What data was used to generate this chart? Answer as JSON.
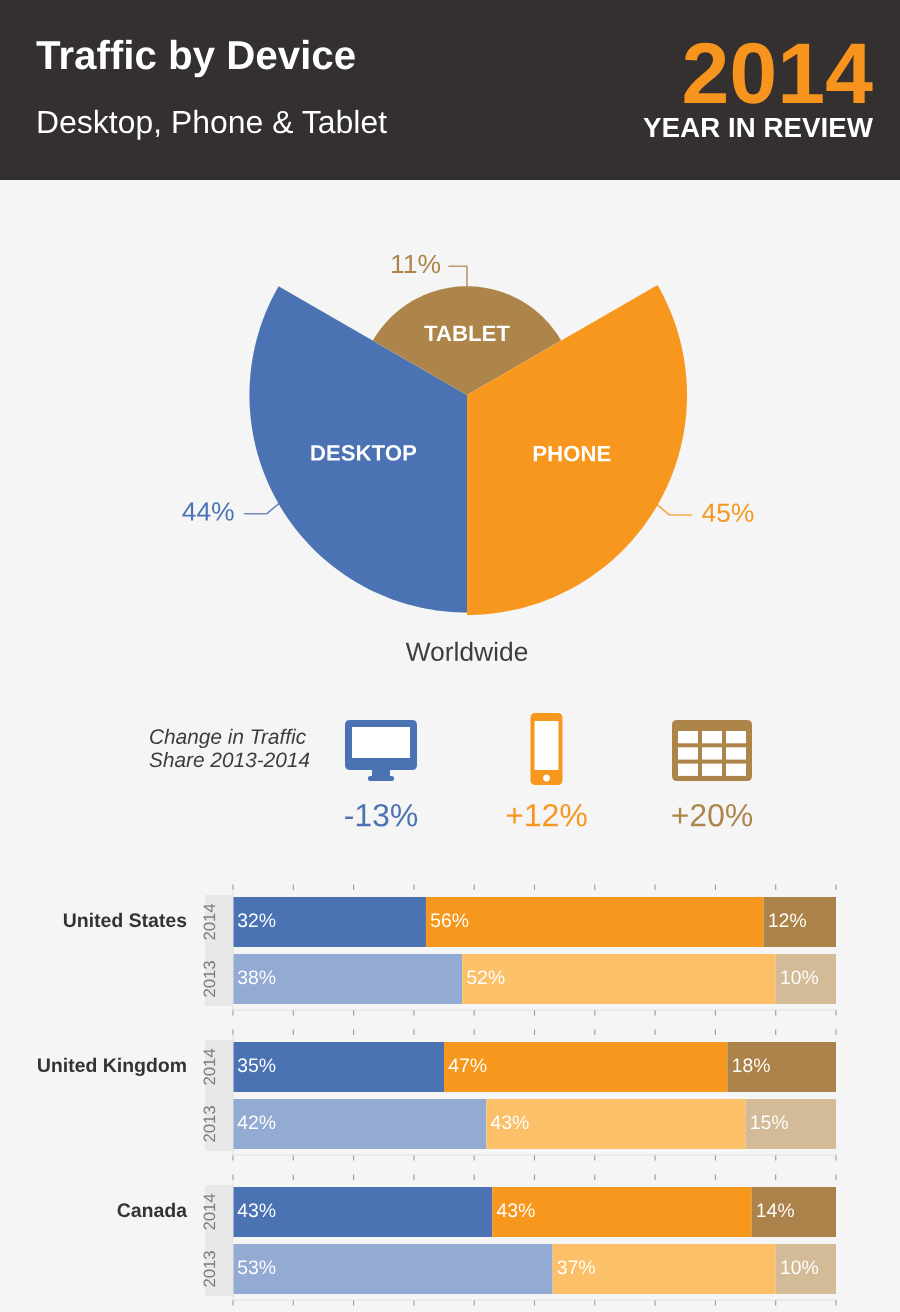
{
  "chart_data": [
    {
      "type": "other",
      "title": "Traffic by Device",
      "subtitle": "Desktop, Phone & Tablet",
      "annotations": [
        "2014",
        "YEAR IN REVIEW"
      ],
      "categories": [
        "DESKTOP",
        "TABLET",
        "PHONE"
      ],
      "values": [
        44,
        11,
        45
      ],
      "colors": [
        "#4b73b4",
        "#ad854a",
        "#f7971e"
      ],
      "value_labels": [
        "44%",
        "11%",
        "45%"
      ],
      "xlabel": "Worldwide"
    },
    {
      "type": "other",
      "title": "Change in Traffic\nShare 2013-2014",
      "annotations": [
        "-13%",
        "+12%",
        "+20%"
      ],
      "colors": [
        "#4b73b4",
        "#f7971e",
        "#ad854a"
      ]
    },
    {
      "type": "bar",
      "orientation": "horizontal",
      "stacked": true,
      "ylabel": "United States",
      "categories": [
        "2014",
        "2013"
      ],
      "series": [
        {
          "colors": [
            "#4b73b4",
            "#93aad3"
          ],
          "values": [
            32,
            38
          ],
          "value_labels": [
            "32%",
            "38%"
          ]
        },
        {
          "colors": [
            "#f7971e",
            "#fcc168"
          ],
          "values": [
            56,
            52
          ],
          "value_labels": [
            "56%",
            "52%"
          ]
        },
        {
          "colors": [
            "#ab8249",
            "#d4bb98"
          ],
          "values": [
            12,
            10
          ],
          "value_labels": [
            "12%",
            "10%"
          ]
        }
      ],
      "xlim": [
        0,
        100
      ],
      "xticks": [
        {
          "value": 0,
          "label": null
        },
        {
          "value": 10,
          "label": null
        },
        {
          "value": 20,
          "label": null
        },
        {
          "value": 30,
          "label": null
        },
        {
          "value": 40,
          "label": null
        },
        {
          "value": 50,
          "label": null
        },
        {
          "value": 60,
          "label": null
        },
        {
          "value": 70,
          "label": null
        },
        {
          "value": 80,
          "label": null
        },
        {
          "value": 90,
          "label": null
        },
        {
          "value": 100,
          "label": null
        }
      ],
      "tick_labels": "y"
    },
    {
      "type": "bar",
      "orientation": "horizontal",
      "stacked": true,
      "ylabel": "United Kingdom",
      "categories": [
        "2014",
        "2013"
      ],
      "series": [
        {
          "colors": [
            "#4b73b4",
            "#93aad3"
          ],
          "values": [
            35,
            42
          ],
          "value_labels": [
            "35%",
            "42%"
          ]
        },
        {
          "colors": [
            "#f7971e",
            "#fcc168"
          ],
          "values": [
            47,
            43
          ],
          "value_labels": [
            "47%",
            "43%"
          ]
        },
        {
          "colors": [
            "#ab8249",
            "#d4bb98"
          ],
          "values": [
            18,
            15
          ],
          "value_labels": [
            "18%",
            "15%"
          ]
        }
      ],
      "xlim": [
        0,
        100
      ],
      "xticks": [
        {
          "value": 0,
          "label": null
        },
        {
          "value": 10,
          "label": null
        },
        {
          "value": 20,
          "label": null
        },
        {
          "value": 30,
          "label": null
        },
        {
          "value": 40,
          "label": null
        },
        {
          "value": 50,
          "label": null
        },
        {
          "value": 60,
          "label": null
        },
        {
          "value": 70,
          "label": null
        },
        {
          "value": 80,
          "label": null
        },
        {
          "value": 90,
          "label": null
        },
        {
          "value": 100,
          "label": null
        }
      ],
      "tick_labels": "y"
    },
    {
      "type": "bar",
      "orientation": "horizontal",
      "stacked": true,
      "ylabel": "Canada",
      "categories": [
        "2014",
        "2013"
      ],
      "series": [
        {
          "colors": [
            "#4b73b4",
            "#93aad3"
          ],
          "values": [
            43,
            53
          ],
          "value_labels": [
            "43%",
            "53%"
          ]
        },
        {
          "colors": [
            "#f7971e",
            "#fcc168"
          ],
          "values": [
            43,
            37
          ],
          "value_labels": [
            "43%",
            "37%"
          ]
        },
        {
          "colors": [
            "#ab8249",
            "#d4bb98"
          ],
          "values": [
            14,
            10
          ],
          "value_labels": [
            "14%",
            "10%"
          ]
        }
      ],
      "xlim": [
        0,
        100
      ],
      "xticks": [
        {
          "value": 0,
          "label": null
        },
        {
          "value": 10,
          "label": null
        },
        {
          "value": 20,
          "label": null
        },
        {
          "value": 30,
          "label": null
        },
        {
          "value": 40,
          "label": null
        },
        {
          "value": 50,
          "label": null
        },
        {
          "value": 60,
          "label": null
        },
        {
          "value": 70,
          "label": null
        },
        {
          "value": 80,
          "label": null
        },
        {
          "value": 90,
          "label": null
        },
        {
          "value": 100,
          "label": null
        }
      ],
      "tick_labels": "y"
    }
  ]
}
